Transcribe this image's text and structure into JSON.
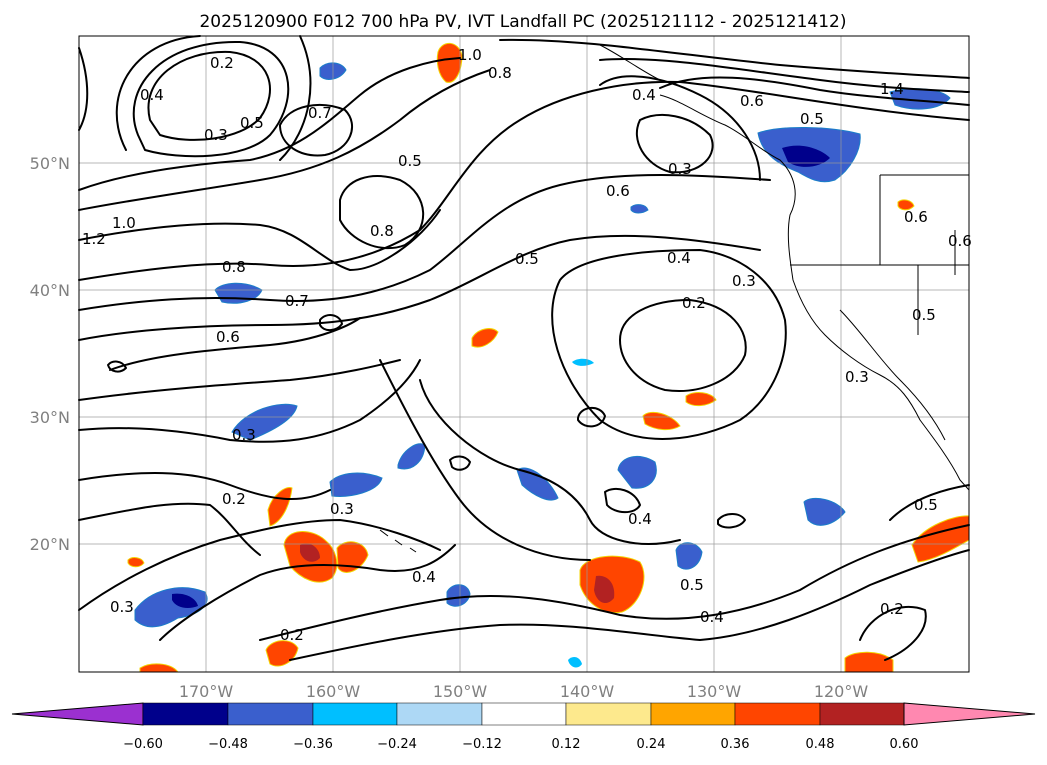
{
  "title": "2025120900 F012 700 hPa PV, IVT Landfall PC (2025121112 - 2025121412)",
  "lat_labels": [
    "50°N",
    "40°N",
    "30°N",
    "20°N"
  ],
  "lon_labels": [
    "170°W",
    "160°W",
    "150°W",
    "140°W",
    "130°W",
    "120°W"
  ],
  "colorbar": {
    "ticks": [
      "−0.60",
      "−0.48",
      "−0.36",
      "−0.24",
      "−0.12",
      "0.12",
      "0.24",
      "0.36",
      "0.48",
      "0.60"
    ],
    "colors": [
      "#9b30d0",
      "#00008b",
      "#3a5fcd",
      "#00bfff",
      "#add8f5",
      "#ffffff",
      "#fde98d",
      "#ffa500",
      "#ff4500",
      "#b22222",
      "#ff88b0"
    ]
  },
  "contour_labels": [
    "0.2",
    "0.4",
    "0.7",
    "0.3",
    "0.5",
    "1.0",
    "1.2",
    "0.8",
    "0.7",
    "0.6",
    "0.8",
    "0.6",
    "0.5",
    "0.5",
    "0.4",
    "0.3",
    "0.2",
    "1.0",
    "0.8",
    "0.4",
    "0.3",
    "0.6",
    "0.5",
    "0.3",
    "0.2",
    "0.3",
    "0.2",
    "0.4",
    "0.5",
    "0.4",
    "0.2",
    "0.4",
    "0.5",
    "0.3",
    "0.6",
    "0.3",
    "1.4",
    "0.6",
    "0.5"
  ]
}
